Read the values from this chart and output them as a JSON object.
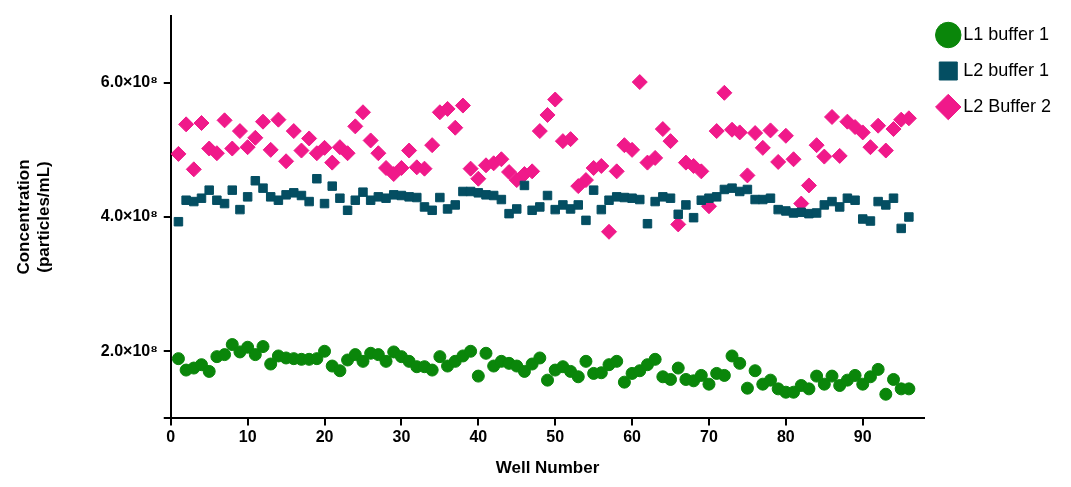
{
  "chart_data": {
    "type": "scatter",
    "xlabel": "Well Number",
    "ylabel": "Concentration\n(particles/mL)",
    "legend": "top right",
    "grid": false,
    "x": [
      1,
      2,
      3,
      4,
      5,
      6,
      7,
      8,
      9,
      10,
      11,
      12,
      13,
      14,
      15,
      16,
      17,
      18,
      19,
      20,
      21,
      22,
      23,
      24,
      25,
      26,
      27,
      28,
      29,
      30,
      31,
      32,
      33,
      34,
      35,
      36,
      37,
      38,
      39,
      40,
      41,
      42,
      43,
      44,
      45,
      46,
      47,
      48,
      49,
      50,
      51,
      52,
      53,
      54,
      55,
      56,
      57,
      58,
      59,
      60,
      61,
      62,
      63,
      64,
      65,
      66,
      67,
      68,
      69,
      70,
      71,
      72,
      73,
      74,
      75,
      76,
      77,
      78,
      79,
      80,
      81,
      82,
      83,
      84,
      85,
      86,
      87,
      88,
      89,
      90,
      91,
      92,
      93,
      94,
      95,
      96
    ],
    "xlim": [
      0,
      98
    ],
    "xticks": [
      0,
      10,
      20,
      30,
      40,
      50,
      60,
      70,
      80,
      90
    ],
    "ylim": [
      100000000,
      700000000
    ],
    "yticks": [
      {
        "value": 100000000,
        "label": null
      },
      {
        "value": 200000000,
        "label": "2.0×10⁸"
      },
      {
        "value": 400000000,
        "label": "4.0×10⁸"
      },
      {
        "value": 600000000,
        "label": "6.0×10⁸"
      }
    ],
    "series": [
      {
        "name": "L1 buffer 1",
        "color": "#0a860a",
        "marker": "circle",
        "values": [
          189000000.0,
          172000000.0,
          175000000.0,
          180000000.0,
          170000000.0,
          192000000.0,
          195000000.0,
          210000000.0,
          199000000.0,
          206000000.0,
          195000000.0,
          207000000.0,
          181000000.0,
          193000000.0,
          190000000.0,
          189000000.0,
          188000000.0,
          188000000.0,
          189000000.0,
          200000000.0,
          178000000.0,
          171000000.0,
          187000000.0,
          195000000.0,
          185000000.0,
          197000000.0,
          195000000.0,
          185000000.0,
          199000000.0,
          192000000.0,
          185000000.0,
          177000000.0,
          177000000.0,
          172000000.0,
          192000000.0,
          178000000.0,
          185000000.0,
          193000000.0,
          200000000.0,
          163000000.0,
          197000000.0,
          178000000.0,
          185000000.0,
          182000000.0,
          178000000.0,
          170000000.0,
          181000000.0,
          190000000.0,
          157000000.0,
          172000000.0,
          177000000.0,
          170000000.0,
          162000000.0,
          185000000.0,
          167000000.0,
          168000000.0,
          180000000.0,
          185000000.0,
          154000000.0,
          167000000.0,
          171000000.0,
          180000000.0,
          188000000.0,
          162000000.0,
          158000000.0,
          175000000.0,
          158000000.0,
          156000000.0,
          164000000.0,
          151000000.0,
          167000000.0,
          164000000.0,
          193000000.0,
          182000000.0,
          145000000.0,
          171000000.0,
          151000000.0,
          157000000.0,
          144000000.0,
          139000000.0,
          139000000.0,
          149000000.0,
          144000000.0,
          163000000.0,
          151000000.0,
          163000000.0,
          149000000.0,
          157000000.0,
          164000000.0,
          151000000.0,
          162000000.0,
          173000000.0,
          136000000.0,
          158000000.0,
          144000000.0,
          144000000.0
        ]
      },
      {
        "name": "L2 buffer 1",
        "color": "#044e62",
        "marker": "square",
        "values": [
          393000000.0,
          425000000.0,
          423000000.0,
          428000000.0,
          440000000.0,
          425000000.0,
          420000000.0,
          440000000.0,
          411000000.0,
          430000000.0,
          454000000.0,
          443000000.0,
          430000000.0,
          425000000.0,
          433000000.0,
          436000000.0,
          432000000.0,
          423000000.0,
          457000000.0,
          420000000.0,
          446000000.0,
          428000000.0,
          410000000.0,
          425000000.0,
          437000000.0,
          425000000.0,
          430000000.0,
          428000000.0,
          433000000.0,
          432000000.0,
          430000000.0,
          429000000.0,
          415000000.0,
          410000000.0,
          429000000.0,
          412000000.0,
          418000000.0,
          438000000.0,
          438000000.0,
          436000000.0,
          433000000.0,
          432000000.0,
          426000000.0,
          405000000.0,
          412000000.0,
          447000000.0,
          410000000.0,
          415000000.0,
          432000000.0,
          411000000.0,
          418000000.0,
          412000000.0,
          418000000.0,
          395000000.0,
          440000000.0,
          411000000.0,
          425000000.0,
          430000000.0,
          429000000.0,
          428000000.0,
          426000000.0,
          390000000.0,
          423000000.0,
          430000000.0,
          428000000.0,
          404000000.0,
          418000000.0,
          399000000.0,
          425000000.0,
          428000000.0,
          430000000.0,
          441000000.0,
          443000000.0,
          438000000.0,
          441000000.0,
          426000000.0,
          426000000.0,
          428000000.0,
          411000000.0,
          409000000.0,
          406000000.0,
          407000000.0,
          405000000.0,
          406000000.0,
          418000000.0,
          423000000.0,
          415000000.0,
          428000000.0,
          425000000.0,
          397000000.0,
          394000000.0,
          423000000.0,
          418000000.0,
          428000000.0,
          383000000.0,
          400000000.0
        ]
      },
      {
        "name": "L2 Buffer 2",
        "color": "#f0198a",
        "marker": "diamond",
        "values": [
          494000000.0,
          538000000.0,
          471000000.0,
          540000000.0,
          502000000.0,
          495000000.0,
          544000000.0,
          502000000.0,
          528000000.0,
          504000000.0,
          518000000.0,
          542000000.0,
          500000000.0,
          545000000.0,
          483000000.0,
          528000000.0,
          499000000.0,
          517000000.0,
          495000000.0,
          503000000.0,
          481000000.0,
          504000000.0,
          495000000.0,
          535000000.0,
          556000000.0,
          514000000.0,
          495000000.0,
          473000000.0,
          464000000.0,
          473000000.0,
          499000000.0,
          474000000.0,
          472000000.0,
          507000000.0,
          556000000.0,
          561000000.0,
          533000000.0,
          566000000.0,
          472000000.0,
          457000000.0,
          477000000.0,
          480000000.0,
          486000000.0,
          467000000.0,
          455000000.0,
          464000000.0,
          468000000.0,
          528000000.0,
          552000000.0,
          575000000.0,
          513000000.0,
          516000000.0,
          446000000.0,
          455000000.0,
          473000000.0,
          476000000.0,
          378000000.0,
          468000000.0,
          507000000.0,
          500000000.0,
          601000000.0,
          481000000.0,
          488000000.0,
          531000000.0,
          513000000.0,
          389000000.0,
          481000000.0,
          476000000.0,
          468000000.0,
          416000000.0,
          528000000.0,
          585000000.0,
          530000000.0,
          526000000.0,
          462000000.0,
          525000000.0,
          503000000.0,
          529000000.0,
          482000000.0,
          521000000.0,
          486000000.0,
          420000000.0,
          447000000.0,
          507000000.0,
          490000000.0,
          549000000.0,
          491000000.0,
          542000000.0,
          534000000.0,
          526000000.0,
          504000000.0,
          536000000.0,
          499000000.0,
          531000000.0,
          545000000.0,
          547000000.0
        ]
      }
    ]
  }
}
